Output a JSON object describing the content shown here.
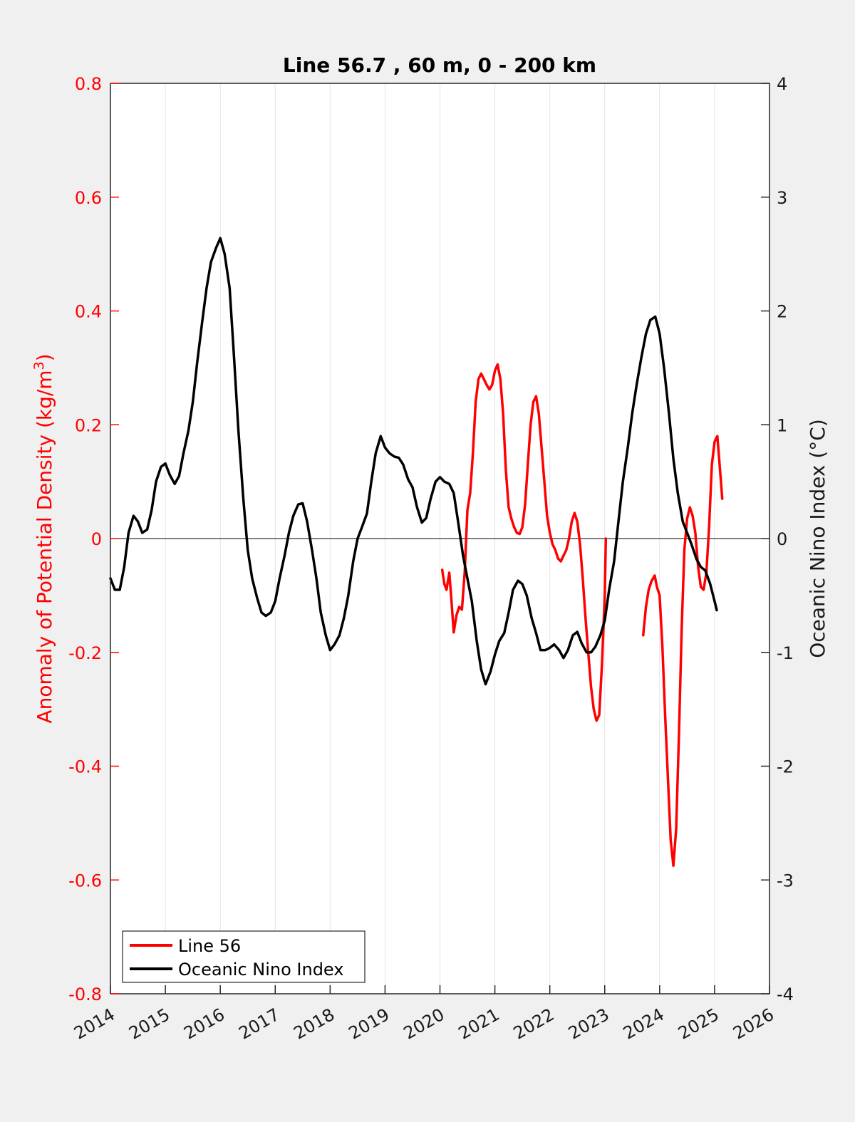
{
  "chart_data": {
    "type": "line",
    "title": "Line 56.7 , 60 m, 0 - 200 km",
    "ylabel_left": {
      "prefix": "Anomaly of Potential Density (kg/m",
      "sup": "3",
      "suffix": ")"
    },
    "ylabel_right": "Oceanic Nino Index (°C)",
    "xlim": [
      2014,
      2026
    ],
    "ylim_left": [
      -0.8,
      0.8
    ],
    "ylim_right": [
      -4,
      4
    ],
    "x_ticks": [
      "2014",
      "2015",
      "2016",
      "2017",
      "2018",
      "2019",
      "2020",
      "2021",
      "2022",
      "2023",
      "2024",
      "2025",
      "2026"
    ],
    "y_ticks_left": [
      "-0.8",
      "-0.6",
      "-0.4",
      "-0.2",
      "0",
      "0.2",
      "0.4",
      "0.6",
      "0.8"
    ],
    "y_ticks_right": [
      "-4",
      "-3",
      "-2",
      "-1",
      "0",
      "1",
      "2",
      "3",
      "4"
    ],
    "grid": "vertical",
    "zero_line": true,
    "legend_position": "bottom-left",
    "colors": {
      "line56": "#ff0000",
      "oni": "#000000",
      "left_axis": "#ff0000",
      "right_axis": "#1a1a1a"
    },
    "series": [
      {
        "name": "Line 56",
        "axis": "left",
        "segments": [
          [
            [
              2020.04,
              -0.055
            ],
            [
              2020.08,
              -0.08
            ],
            [
              2020.12,
              -0.09
            ],
            [
              2020.17,
              -0.06
            ],
            [
              2020.21,
              -0.11
            ],
            [
              2020.25,
              -0.165
            ],
            [
              2020.3,
              -0.135
            ],
            [
              2020.35,
              -0.12
            ],
            [
              2020.4,
              -0.125
            ],
            [
              2020.45,
              -0.06
            ],
            [
              2020.5,
              0.05
            ],
            [
              2020.55,
              0.08
            ],
            [
              2020.6,
              0.15
            ],
            [
              2020.65,
              0.24
            ],
            [
              2020.7,
              0.28
            ],
            [
              2020.75,
              0.29
            ],
            [
              2020.8,
              0.28
            ],
            [
              2020.85,
              0.27
            ],
            [
              2020.9,
              0.262
            ],
            [
              2020.95,
              0.27
            ],
            [
              2021.0,
              0.295
            ],
            [
              2021.05,
              0.306
            ],
            [
              2021.1,
              0.28
            ],
            [
              2021.15,
              0.22
            ],
            [
              2021.2,
              0.12
            ],
            [
              2021.25,
              0.055
            ],
            [
              2021.3,
              0.035
            ],
            [
              2021.35,
              0.02
            ],
            [
              2021.4,
              0.01
            ],
            [
              2021.45,
              0.008
            ],
            [
              2021.5,
              0.02
            ],
            [
              2021.55,
              0.06
            ],
            [
              2021.6,
              0.13
            ],
            [
              2021.65,
              0.2
            ],
            [
              2021.7,
              0.24
            ],
            [
              2021.75,
              0.25
            ],
            [
              2021.8,
              0.22
            ],
            [
              2021.85,
              0.16
            ],
            [
              2021.9,
              0.1
            ],
            [
              2021.95,
              0.04
            ],
            [
              2022.0,
              0.01
            ],
            [
              2022.05,
              -0.01
            ],
            [
              2022.1,
              -0.02
            ],
            [
              2022.15,
              -0.035
            ],
            [
              2022.2,
              -0.04
            ],
            [
              2022.25,
              -0.03
            ],
            [
              2022.3,
              -0.02
            ],
            [
              2022.35,
              0.0
            ],
            [
              2022.4,
              0.03
            ],
            [
              2022.45,
              0.045
            ],
            [
              2022.5,
              0.03
            ],
            [
              2022.55,
              -0.01
            ],
            [
              2022.6,
              -0.07
            ],
            [
              2022.65,
              -0.14
            ],
            [
              2022.7,
              -0.2
            ],
            [
              2022.75,
              -0.26
            ],
            [
              2022.8,
              -0.3
            ],
            [
              2022.85,
              -0.32
            ],
            [
              2022.9,
              -0.31
            ],
            [
              2022.95,
              -0.22
            ],
            [
              2023.0,
              -0.1
            ],
            [
              2023.02,
              0.0
            ]
          ],
          [
            [
              2023.7,
              -0.17
            ],
            [
              2023.75,
              -0.12
            ],
            [
              2023.8,
              -0.09
            ],
            [
              2023.85,
              -0.075
            ],
            [
              2023.88,
              -0.07
            ],
            [
              2023.91,
              -0.065
            ],
            [
              2023.95,
              -0.085
            ],
            [
              2024.0,
              -0.1
            ],
            [
              2024.05,
              -0.19
            ],
            [
              2024.1,
              -0.31
            ],
            [
              2024.15,
              -0.42
            ],
            [
              2024.2,
              -0.53
            ],
            [
              2024.25,
              -0.575
            ],
            [
              2024.3,
              -0.51
            ],
            [
              2024.35,
              -0.35
            ],
            [
              2024.4,
              -0.16
            ],
            [
              2024.45,
              -0.02
            ],
            [
              2024.5,
              0.035
            ],
            [
              2024.55,
              0.055
            ],
            [
              2024.6,
              0.04
            ],
            [
              2024.65,
              0.01
            ],
            [
              2024.7,
              -0.05
            ],
            [
              2024.75,
              -0.085
            ],
            [
              2024.8,
              -0.09
            ],
            [
              2024.85,
              -0.06
            ],
            [
              2024.9,
              0.02
            ],
            [
              2024.95,
              0.13
            ],
            [
              2025.0,
              0.17
            ],
            [
              2025.05,
              0.18
            ],
            [
              2025.1,
              0.12
            ],
            [
              2025.14,
              0.07
            ]
          ]
        ]
      },
      {
        "name": "Oceanic Nino Index",
        "axis": "right",
        "points": [
          [
            2014.0,
            -0.35
          ],
          [
            2014.08,
            -0.45
          ],
          [
            2014.17,
            -0.45
          ],
          [
            2014.25,
            -0.25
          ],
          [
            2014.33,
            0.05
          ],
          [
            2014.42,
            0.2
          ],
          [
            2014.5,
            0.15
          ],
          [
            2014.58,
            0.05
          ],
          [
            2014.67,
            0.08
          ],
          [
            2014.75,
            0.25
          ],
          [
            2014.83,
            0.5
          ],
          [
            2014.92,
            0.63
          ],
          [
            2015.0,
            0.66
          ],
          [
            2015.08,
            0.56
          ],
          [
            2015.17,
            0.48
          ],
          [
            2015.25,
            0.55
          ],
          [
            2015.33,
            0.75
          ],
          [
            2015.42,
            0.95
          ],
          [
            2015.5,
            1.2
          ],
          [
            2015.58,
            1.55
          ],
          [
            2015.67,
            1.9
          ],
          [
            2015.75,
            2.2
          ],
          [
            2015.83,
            2.43
          ],
          [
            2015.92,
            2.55
          ],
          [
            2016.0,
            2.64
          ],
          [
            2016.08,
            2.5
          ],
          [
            2016.17,
            2.2
          ],
          [
            2016.25,
            1.6
          ],
          [
            2016.33,
            0.95
          ],
          [
            2016.42,
            0.35
          ],
          [
            2016.5,
            -0.1
          ],
          [
            2016.58,
            -0.35
          ],
          [
            2016.67,
            -0.52
          ],
          [
            2016.75,
            -0.65
          ],
          [
            2016.83,
            -0.68
          ],
          [
            2016.92,
            -0.65
          ],
          [
            2017.0,
            -0.55
          ],
          [
            2017.08,
            -0.35
          ],
          [
            2017.17,
            -0.15
          ],
          [
            2017.25,
            0.05
          ],
          [
            2017.33,
            0.2
          ],
          [
            2017.42,
            0.3
          ],
          [
            2017.5,
            0.31
          ],
          [
            2017.58,
            0.15
          ],
          [
            2017.67,
            -0.1
          ],
          [
            2017.75,
            -0.35
          ],
          [
            2017.83,
            -0.65
          ],
          [
            2017.92,
            -0.85
          ],
          [
            2018.0,
            -0.98
          ],
          [
            2018.08,
            -0.93
          ],
          [
            2018.17,
            -0.85
          ],
          [
            2018.25,
            -0.7
          ],
          [
            2018.33,
            -0.5
          ],
          [
            2018.42,
            -0.2
          ],
          [
            2018.5,
            0.0
          ],
          [
            2018.58,
            0.1
          ],
          [
            2018.67,
            0.22
          ],
          [
            2018.75,
            0.5
          ],
          [
            2018.83,
            0.75
          ],
          [
            2018.92,
            0.9
          ],
          [
            2019.0,
            0.8
          ],
          [
            2019.08,
            0.75
          ],
          [
            2019.17,
            0.72
          ],
          [
            2019.25,
            0.71
          ],
          [
            2019.33,
            0.65
          ],
          [
            2019.42,
            0.52
          ],
          [
            2019.5,
            0.45
          ],
          [
            2019.58,
            0.28
          ],
          [
            2019.67,
            0.14
          ],
          [
            2019.75,
            0.18
          ],
          [
            2019.83,
            0.35
          ],
          [
            2019.92,
            0.5
          ],
          [
            2020.0,
            0.54
          ],
          [
            2020.08,
            0.5
          ],
          [
            2020.17,
            0.48
          ],
          [
            2020.25,
            0.4
          ],
          [
            2020.33,
            0.15
          ],
          [
            2020.42,
            -0.15
          ],
          [
            2020.5,
            -0.35
          ],
          [
            2020.58,
            -0.55
          ],
          [
            2020.67,
            -0.9
          ],
          [
            2020.75,
            -1.15
          ],
          [
            2020.83,
            -1.28
          ],
          [
            2020.92,
            -1.17
          ],
          [
            2021.0,
            -1.02
          ],
          [
            2021.08,
            -0.9
          ],
          [
            2021.17,
            -0.83
          ],
          [
            2021.25,
            -0.65
          ],
          [
            2021.33,
            -0.45
          ],
          [
            2021.42,
            -0.37
          ],
          [
            2021.5,
            -0.4
          ],
          [
            2021.58,
            -0.5
          ],
          [
            2021.67,
            -0.7
          ],
          [
            2021.75,
            -0.83
          ],
          [
            2021.83,
            -0.98
          ],
          [
            2021.92,
            -0.98
          ],
          [
            2022.0,
            -0.96
          ],
          [
            2022.08,
            -0.93
          ],
          [
            2022.17,
            -0.98
          ],
          [
            2022.25,
            -1.05
          ],
          [
            2022.33,
            -0.98
          ],
          [
            2022.42,
            -0.85
          ],
          [
            2022.5,
            -0.82
          ],
          [
            2022.58,
            -0.92
          ],
          [
            2022.67,
            -1.0
          ],
          [
            2022.75,
            -1.0
          ],
          [
            2022.83,
            -0.95
          ],
          [
            2022.92,
            -0.85
          ],
          [
            2023.0,
            -0.72
          ],
          [
            2023.08,
            -0.45
          ],
          [
            2023.17,
            -0.2
          ],
          [
            2023.25,
            0.15
          ],
          [
            2023.33,
            0.5
          ],
          [
            2023.42,
            0.8
          ],
          [
            2023.5,
            1.1
          ],
          [
            2023.58,
            1.35
          ],
          [
            2023.67,
            1.6
          ],
          [
            2023.75,
            1.8
          ],
          [
            2023.83,
            1.92
          ],
          [
            2023.92,
            1.95
          ],
          [
            2024.0,
            1.8
          ],
          [
            2024.08,
            1.5
          ],
          [
            2024.17,
            1.1
          ],
          [
            2024.25,
            0.7
          ],
          [
            2024.33,
            0.4
          ],
          [
            2024.42,
            0.15
          ],
          [
            2024.5,
            0.05
          ],
          [
            2024.58,
            -0.05
          ],
          [
            2024.67,
            -0.18
          ],
          [
            2024.75,
            -0.25
          ],
          [
            2024.83,
            -0.28
          ],
          [
            2024.92,
            -0.4
          ],
          [
            2025.0,
            -0.55
          ],
          [
            2025.04,
            -0.63
          ]
        ]
      }
    ]
  }
}
